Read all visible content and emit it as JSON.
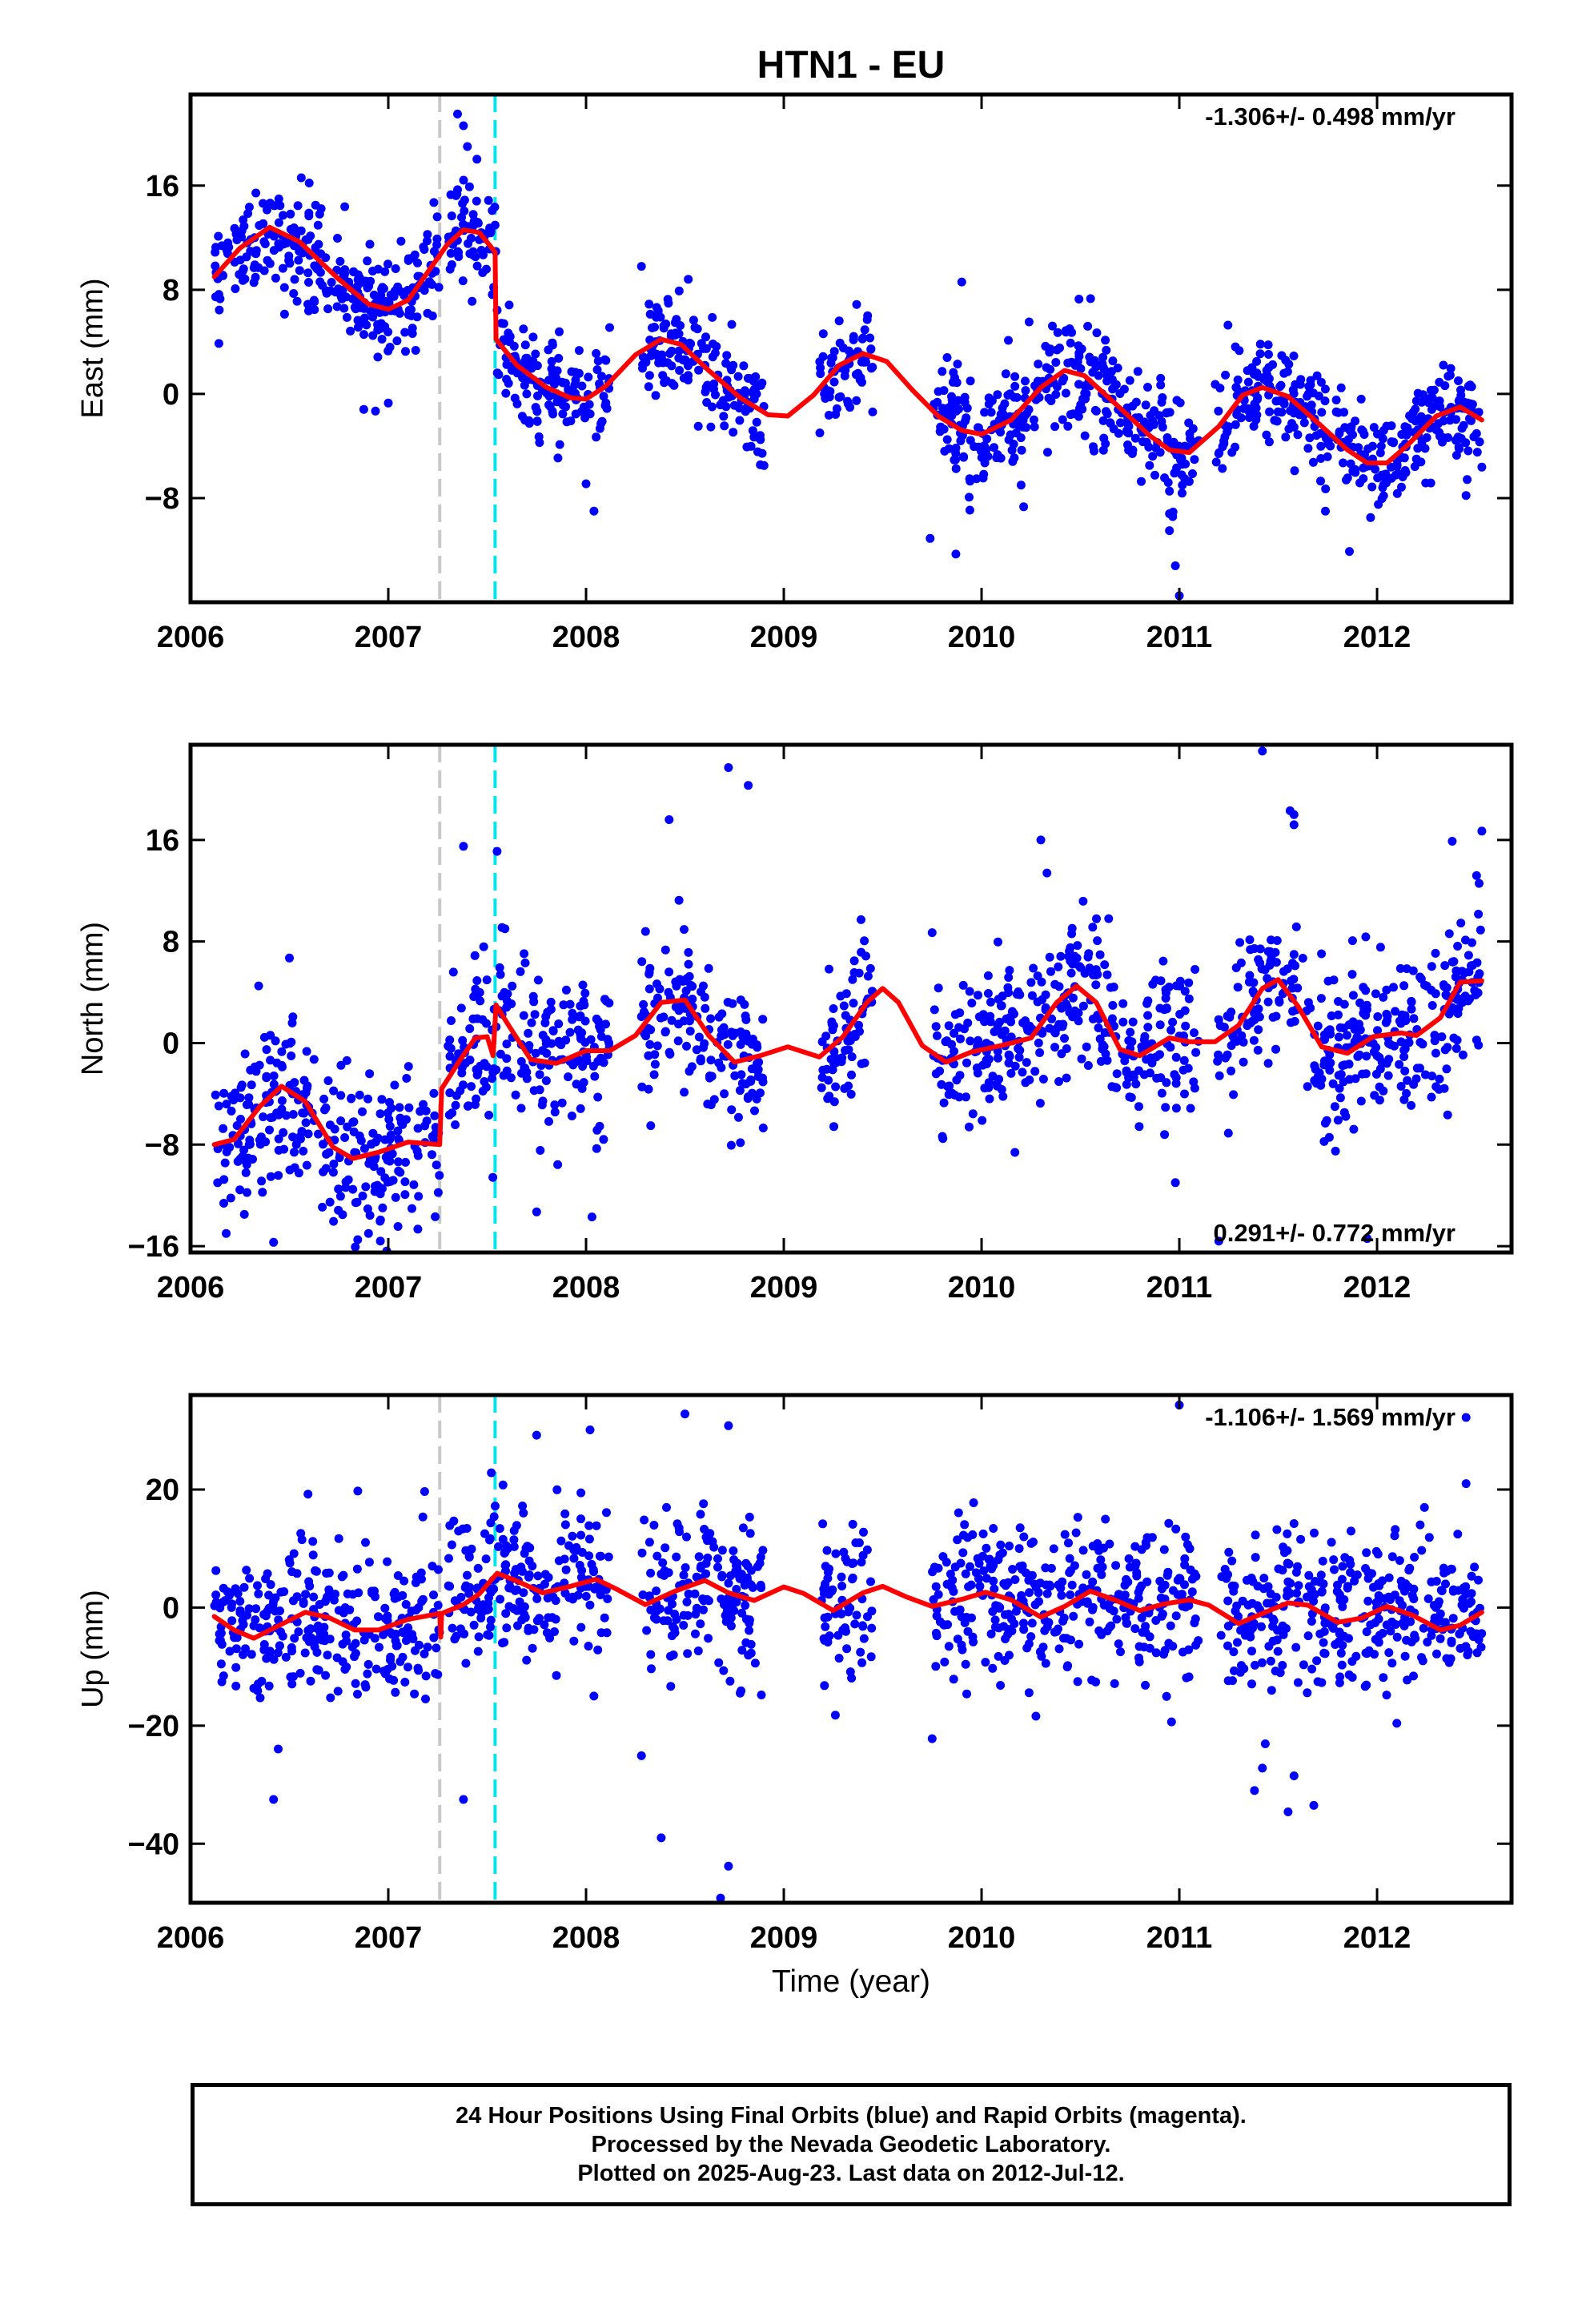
{
  "figure": {
    "title": "HTN1 - EU",
    "xlabel": "Time (year)",
    "caption": [
      "24 Hour Positions Using Final Orbits (blue) and Rapid Orbits (magenta).",
      "Processed by the Nevada Geodetic Laboratory.",
      "Plotted on 2025-Aug-23. Last data on 2012-Jul-12."
    ]
  },
  "colors": {
    "points": "#0000ff",
    "model": "#ff0000",
    "gray_line": "#c8c8c8",
    "cyan_line": "#00e5ee",
    "frame": "#000000"
  },
  "chart_data": [
    {
      "type": "scatter",
      "panel": "east",
      "ylabel": "East (mm)",
      "rate_label": "-1.306+/- 0.498 mm/yr",
      "xlim": [
        2006.0,
        2012.68
      ],
      "ylim": [
        -16,
        23
      ],
      "xticks": [
        2006,
        2007,
        2008,
        2009,
        2010,
        2011,
        2012
      ],
      "yticks": [
        -8,
        0,
        8,
        16
      ],
      "ytick_labels": [
        "−8",
        "0",
        "8",
        "16"
      ],
      "vlines": [
        {
          "x": 2007.26,
          "color": "gray"
        },
        {
          "x": 2007.54,
          "color": "cyan"
        }
      ],
      "segments": [
        [
          2006.12,
          2007.26
        ],
        [
          2007.3,
          2007.56
        ],
        [
          2007.56,
          2008.12
        ],
        [
          2008.28,
          2008.9
        ],
        [
          2009.18,
          2009.45
        ],
        [
          2009.75,
          2011.1
        ],
        [
          2011.18,
          2012.53
        ]
      ],
      "model": [
        [
          2006.12,
          9
        ],
        [
          2006.25,
          11.2
        ],
        [
          2006.4,
          12.8
        ],
        [
          2006.55,
          11.7
        ],
        [
          2006.75,
          8.8
        ],
        [
          2006.9,
          6.9
        ],
        [
          2007.0,
          6.5
        ],
        [
          2007.1,
          7.2
        ],
        [
          2007.22,
          9.8
        ],
        [
          2007.3,
          11.5
        ],
        [
          2007.38,
          12.6
        ],
        [
          2007.46,
          12.4
        ],
        [
          2007.54,
          10.9
        ],
        [
          2007.545,
          4.2
        ],
        [
          2007.65,
          2.2
        ],
        [
          2007.8,
          0.5
        ],
        [
          2007.92,
          -0.3
        ],
        [
          2008.0,
          -0.4
        ],
        [
          2008.1,
          0.6
        ],
        [
          2008.25,
          3.0
        ],
        [
          2008.38,
          4.2
        ],
        [
          2008.48,
          3.8
        ],
        [
          2008.62,
          1.8
        ],
        [
          2008.78,
          -0.3
        ],
        [
          2008.92,
          -1.6
        ],
        [
          2009.02,
          -1.7
        ],
        [
          2009.15,
          -0.1
        ],
        [
          2009.28,
          2.2
        ],
        [
          2009.4,
          3.1
        ],
        [
          2009.52,
          2.5
        ],
        [
          2009.65,
          0.3
        ],
        [
          2009.78,
          -1.7
        ],
        [
          2009.9,
          -2.8
        ],
        [
          2010.0,
          -3.1
        ],
        [
          2010.15,
          -2.0
        ],
        [
          2010.3,
          0.5
        ],
        [
          2010.42,
          1.8
        ],
        [
          2010.52,
          1.4
        ],
        [
          2010.68,
          -0.8
        ],
        [
          2010.85,
          -3.2
        ],
        [
          2010.95,
          -4.3
        ],
        [
          2011.05,
          -4.5
        ],
        [
          2011.2,
          -2.5
        ],
        [
          2011.32,
          -0.1
        ],
        [
          2011.42,
          0.5
        ],
        [
          2011.55,
          -0.2
        ],
        [
          2011.7,
          -2.2
        ],
        [
          2011.85,
          -4.3
        ],
        [
          2011.95,
          -5.3
        ],
        [
          2012.05,
          -5.3
        ],
        [
          2012.15,
          -4.0
        ],
        [
          2012.3,
          -1.7
        ],
        [
          2012.42,
          -1.0
        ],
        [
          2012.53,
          -2.0
        ]
      ],
      "n_points": 1400,
      "outliers": [
        [
          2007.35,
          21.5
        ],
        [
          2007.38,
          20.6
        ],
        [
          2007.4,
          19.0
        ],
        [
          2006.56,
          16.6
        ],
        [
          2006.6,
          16.2
        ],
        [
          2008.28,
          9.8
        ],
        [
          2009.9,
          8.6
        ],
        [
          2007.0,
          -0.7
        ],
        [
          2008.0,
          -6.9
        ],
        [
          2008.04,
          -9.0
        ],
        [
          2009.74,
          -11.1
        ],
        [
          2009.87,
          -12.3
        ],
        [
          2010.98,
          -13.2
        ],
        [
          2011.0,
          -15.5
        ],
        [
          2010.95,
          -9.2
        ],
        [
          2011.86,
          -12.1
        ],
        [
          2012.45,
          -7.8
        ],
        [
          2008.9,
          -5.5
        ],
        [
          2010.2,
          -7.0
        ],
        [
          2010.95,
          -10.5
        ]
      ]
    },
    {
      "type": "scatter",
      "panel": "north",
      "ylabel": "North (mm)",
      "rate_label": "0.291+/- 0.772 mm/yr",
      "xlim": [
        2006.0,
        2012.68
      ],
      "ylim": [
        -16.5,
        23.5
      ],
      "xticks": [
        2006,
        2007,
        2008,
        2009,
        2010,
        2011,
        2012
      ],
      "yticks": [
        -16,
        -8,
        0,
        8,
        16
      ],
      "ytick_labels": [
        "−16",
        "−8",
        "0",
        "8",
        "16"
      ],
      "vlines": [
        {
          "x": 2007.26,
          "color": "gray"
        },
        {
          "x": 2007.54,
          "color": "cyan"
        }
      ],
      "segments": [
        [
          2006.12,
          2007.26
        ],
        [
          2007.3,
          2007.56
        ],
        [
          2007.56,
          2008.12
        ],
        [
          2008.28,
          2008.9
        ],
        [
          2009.18,
          2009.45
        ],
        [
          2009.75,
          2011.1
        ],
        [
          2011.18,
          2012.53
        ]
      ],
      "model": [
        [
          2006.12,
          -8
        ],
        [
          2006.22,
          -7.6
        ],
        [
          2006.35,
          -5.0
        ],
        [
          2006.46,
          -3.4
        ],
        [
          2006.58,
          -4.6
        ],
        [
          2006.72,
          -8.2
        ],
        [
          2006.82,
          -9.1
        ],
        [
          2006.95,
          -8.6
        ],
        [
          2007.1,
          -7.8
        ],
        [
          2007.26,
          -8.0
        ],
        [
          2007.27,
          -3.6
        ],
        [
          2007.36,
          -1.4
        ],
        [
          2007.44,
          0.4
        ],
        [
          2007.5,
          0.5
        ],
        [
          2007.53,
          -1.0
        ],
        [
          2007.545,
          3.0
        ],
        [
          2007.6,
          1.6
        ],
        [
          2007.72,
          -1.3
        ],
        [
          2007.85,
          -1.6
        ],
        [
          2008.0,
          -0.6
        ],
        [
          2008.12,
          -0.6
        ],
        [
          2008.25,
          0.6
        ],
        [
          2008.38,
          3.2
        ],
        [
          2008.5,
          3.4
        ],
        [
          2008.62,
          0.6
        ],
        [
          2008.75,
          -1.5
        ],
        [
          2008.88,
          -1.0
        ],
        [
          2009.02,
          -0.3
        ],
        [
          2009.18,
          -1.1
        ],
        [
          2009.3,
          0.5
        ],
        [
          2009.42,
          3.2
        ],
        [
          2009.5,
          4.3
        ],
        [
          2009.58,
          3.2
        ],
        [
          2009.7,
          -0.2
        ],
        [
          2009.82,
          -1.5
        ],
        [
          2009.95,
          -0.7
        ],
        [
          2010.1,
          -0.2
        ],
        [
          2010.25,
          0.4
        ],
        [
          2010.38,
          3.2
        ],
        [
          2010.48,
          4.5
        ],
        [
          2010.58,
          3.2
        ],
        [
          2010.7,
          -0.5
        ],
        [
          2010.8,
          -1.0
        ],
        [
          2010.95,
          0.4
        ],
        [
          2011.05,
          0.1
        ],
        [
          2011.18,
          0.1
        ],
        [
          2011.3,
          1.4
        ],
        [
          2011.42,
          4.3
        ],
        [
          2011.5,
          5.0
        ],
        [
          2011.6,
          2.9
        ],
        [
          2011.72,
          -0.3
        ],
        [
          2011.85,
          -0.8
        ],
        [
          2011.98,
          0.5
        ],
        [
          2012.12,
          0.8
        ],
        [
          2012.2,
          0.6
        ],
        [
          2012.32,
          2.0
        ],
        [
          2012.42,
          4.8
        ],
        [
          2012.53,
          4.9
        ]
      ],
      "n_points": 1400,
      "outliers": [
        [
          2011.42,
          23.0
        ],
        [
          2008.72,
          21.7
        ],
        [
          2008.82,
          20.3
        ],
        [
          2011.56,
          18.3
        ],
        [
          2011.58,
          18.0
        ],
        [
          2011.58,
          17.2
        ],
        [
          2012.53,
          16.7
        ],
        [
          2010.3,
          16.0
        ],
        [
          2012.38,
          15.9
        ],
        [
          2007.38,
          15.5
        ],
        [
          2007.55,
          15.1
        ],
        [
          2008.42,
          17.6
        ],
        [
          2006.5,
          6.7
        ],
        [
          2009.75,
          8.7
        ],
        [
          2010.98,
          -11.0
        ],
        [
          2011.2,
          -15.6
        ],
        [
          2011.95,
          -15.4
        ],
        [
          2008.03,
          -13.7
        ],
        [
          2007.75,
          -13.3
        ],
        [
          2006.42,
          -15.7
        ],
        [
          2006.18,
          -15.0
        ],
        [
          2006.9,
          -15.0
        ],
        [
          2006.96,
          -15.6
        ]
      ]
    },
    {
      "type": "scatter",
      "panel": "up",
      "ylabel": "Up (mm)",
      "rate_label": "-1.106+/- 1.569 mm/yr",
      "xlim": [
        2006.0,
        2012.68
      ],
      "ylim": [
        -50,
        36
      ],
      "xticks": [
        2006,
        2007,
        2008,
        2009,
        2010,
        2011,
        2012
      ],
      "yticks": [
        -40,
        -20,
        0,
        20
      ],
      "ytick_labels": [
        "−40",
        "−20",
        "0",
        "20"
      ],
      "vlines": [
        {
          "x": 2007.26,
          "color": "gray"
        },
        {
          "x": 2007.54,
          "color": "cyan"
        }
      ],
      "segments": [
        [
          2006.12,
          2007.26
        ],
        [
          2007.3,
          2007.56
        ],
        [
          2007.56,
          2008.12
        ],
        [
          2008.28,
          2008.9
        ],
        [
          2009.18,
          2009.45
        ],
        [
          2009.75,
          2011.1
        ],
        [
          2011.18,
          2012.53
        ]
      ],
      "model": [
        [
          2006.12,
          -1.5
        ],
        [
          2006.22,
          -3.8
        ],
        [
          2006.32,
          -5.2
        ],
        [
          2006.45,
          -3.0
        ],
        [
          2006.58,
          -0.8
        ],
        [
          2006.7,
          -1.7
        ],
        [
          2006.83,
          -3.8
        ],
        [
          2006.95,
          -3.8
        ],
        [
          2007.1,
          -2.0
        ],
        [
          2007.26,
          -1.0
        ],
        [
          2007.265,
          -5.0
        ],
        [
          2007.27,
          -1.0
        ],
        [
          2007.38,
          0.5
        ],
        [
          2007.46,
          2.3
        ],
        [
          2007.55,
          5.8
        ],
        [
          2007.65,
          4.5
        ],
        [
          2007.78,
          2.5
        ],
        [
          2007.92,
          3.6
        ],
        [
          2008.05,
          4.8
        ],
        [
          2008.15,
          3.2
        ],
        [
          2008.3,
          0.5
        ],
        [
          2008.45,
          2.8
        ],
        [
          2008.6,
          4.6
        ],
        [
          2008.72,
          2.5
        ],
        [
          2008.85,
          1.2
        ],
        [
          2009.0,
          3.5
        ],
        [
          2009.1,
          2.4
        ],
        [
          2009.25,
          -0.5
        ],
        [
          2009.4,
          2.5
        ],
        [
          2009.5,
          3.6
        ],
        [
          2009.62,
          1.8
        ],
        [
          2009.75,
          0.2
        ],
        [
          2009.9,
          1.4
        ],
        [
          2010.02,
          2.6
        ],
        [
          2010.15,
          1.3
        ],
        [
          2010.3,
          -1.6
        ],
        [
          2010.42,
          0.2
        ],
        [
          2010.55,
          2.8
        ],
        [
          2010.68,
          1.2
        ],
        [
          2010.8,
          -0.5
        ],
        [
          2010.92,
          0.6
        ],
        [
          2011.05,
          1.3
        ],
        [
          2011.15,
          0.4
        ],
        [
          2011.3,
          -2.7
        ],
        [
          2011.42,
          -1.0
        ],
        [
          2011.55,
          0.8
        ],
        [
          2011.65,
          0.4
        ],
        [
          2011.8,
          -2.5
        ],
        [
          2011.92,
          -1.8
        ],
        [
          2012.05,
          0.2
        ],
        [
          2012.18,
          -1.3
        ],
        [
          2012.32,
          -3.8
        ],
        [
          2012.42,
          -3.0
        ],
        [
          2012.53,
          -0.8
        ]
      ],
      "n_points": 1400,
      "outliers": [
        [
          2011.0,
          34.3
        ],
        [
          2012.45,
          32.2
        ],
        [
          2008.5,
          32.8
        ],
        [
          2008.72,
          30.8
        ],
        [
          2012.45,
          21.0
        ],
        [
          2008.02,
          30.1
        ],
        [
          2007.75,
          29.2
        ],
        [
          2006.42,
          -32.5
        ],
        [
          2007.38,
          -32.5
        ],
        [
          2008.28,
          -25.1
        ],
        [
          2008.38,
          -39.0
        ],
        [
          2008.72,
          -43.8
        ],
        [
          2008.68,
          -49.2
        ],
        [
          2009.75,
          -22.2
        ],
        [
          2011.38,
          -31.0
        ],
        [
          2011.55,
          -34.6
        ],
        [
          2011.68,
          -33.5
        ],
        [
          2011.42,
          -27.2
        ],
        [
          2011.58,
          -28.5
        ],
        [
          2012.1,
          -19.6
        ]
      ]
    }
  ]
}
